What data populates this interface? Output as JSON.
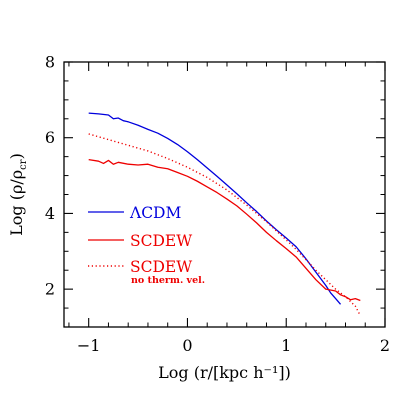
{
  "chart_data": {
    "type": "line",
    "xlabel": "Log (r/[kpc h⁻¹])",
    "ylabel": "Log (ρ/ρ",
    "ylabel_sub": "cr",
    "ylabel_close": ")",
    "xlim": [
      -1.25,
      2.0
    ],
    "ylim": [
      1.0,
      8.0
    ],
    "xticks_major": [
      -1,
      0,
      1,
      2
    ],
    "yticks_major": [
      2,
      4,
      6,
      8
    ],
    "xtick_labels": [
      "−1",
      "0",
      "1",
      "2"
    ],
    "ytick_labels": [
      "2",
      "4",
      "6",
      "8"
    ],
    "legend_position": "middle-left",
    "series": [
      {
        "name": "ΛCDM",
        "color": "#0000dd",
        "style": "solid",
        "x": [
          -1.0,
          -0.9,
          -0.8,
          -0.75,
          -0.7,
          -0.65,
          -0.6,
          -0.5,
          -0.4,
          -0.3,
          -0.2,
          -0.1,
          0.0,
          0.1,
          0.2,
          0.3,
          0.4,
          0.5,
          0.6,
          0.7,
          0.8,
          0.9,
          1.0,
          1.1,
          1.2,
          1.3,
          1.4,
          1.45,
          1.5,
          1.55
        ],
        "y": [
          6.65,
          6.63,
          6.6,
          6.5,
          6.52,
          6.45,
          6.42,
          6.33,
          6.22,
          6.12,
          5.98,
          5.82,
          5.63,
          5.42,
          5.2,
          4.98,
          4.75,
          4.52,
          4.28,
          4.05,
          3.8,
          3.57,
          3.35,
          3.12,
          2.8,
          2.45,
          2.1,
          1.9,
          1.75,
          1.6
        ]
      },
      {
        "name": "SCDEW",
        "color": "#ee0000",
        "style": "solid",
        "x": [
          -1.0,
          -0.9,
          -0.85,
          -0.8,
          -0.75,
          -0.7,
          -0.6,
          -0.5,
          -0.4,
          -0.3,
          -0.2,
          -0.1,
          0.0,
          0.1,
          0.2,
          0.3,
          0.4,
          0.5,
          0.6,
          0.7,
          0.8,
          0.9,
          1.0,
          1.1,
          1.2,
          1.3,
          1.4,
          1.5,
          1.55,
          1.6,
          1.65,
          1.7,
          1.75
        ],
        "y": [
          5.42,
          5.38,
          5.32,
          5.4,
          5.3,
          5.35,
          5.3,
          5.28,
          5.3,
          5.22,
          5.18,
          5.08,
          4.98,
          4.85,
          4.7,
          4.55,
          4.38,
          4.2,
          3.98,
          3.75,
          3.5,
          3.28,
          3.07,
          2.85,
          2.55,
          2.25,
          2.0,
          1.95,
          1.85,
          1.8,
          1.72,
          1.75,
          1.7
        ]
      },
      {
        "name": "SCDEW",
        "note": "no therm. vel.",
        "color": "#ee0000",
        "style": "dotted",
        "x": [
          -1.0,
          -0.8,
          -0.6,
          -0.4,
          -0.2,
          0.0,
          0.2,
          0.4,
          0.6,
          0.8,
          1.0,
          1.1,
          1.2,
          1.3,
          1.4,
          1.5,
          1.6,
          1.7,
          1.75
        ],
        "y": [
          6.1,
          5.95,
          5.8,
          5.65,
          5.45,
          5.22,
          4.95,
          4.62,
          4.22,
          3.78,
          3.3,
          3.05,
          2.78,
          2.5,
          2.25,
          2.0,
          1.8,
          1.55,
          1.3
        ]
      }
    ]
  }
}
